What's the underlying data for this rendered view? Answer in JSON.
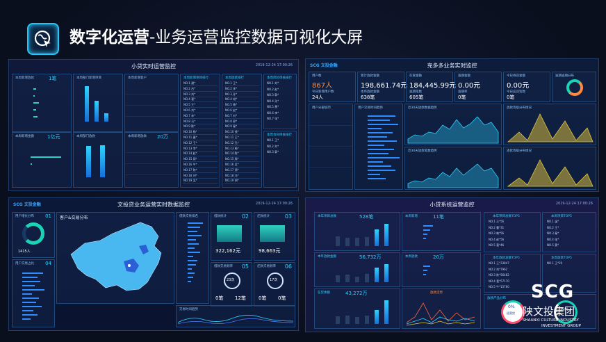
{
  "slide": {
    "title_bold": "数字化运营",
    "title_rest": "-业务运营监控数据可视化大屏",
    "logo_icon": "globe-cursor-icon",
    "accent": "#29c4f6"
  },
  "panel1": {
    "title": "小贷实时运营监控",
    "time": "2019-12-24 17:00:26",
    "card_loans_label": "本周新增放款",
    "card_loans_value": "1笔",
    "card_dept_label": "本周部门新增项目",
    "card_cust_label": "本周新增客户",
    "card_amt_label": "本周新增金额",
    "card_amt_value": "1亿元",
    "card_dept2_label": "本周部门放款",
    "card_cust2_label": "本周新增放款",
    "card_cust2_value": "20万",
    "rank1_title": "本周新增项目排行",
    "rank2_title": "本周放款排行",
    "rank3_title": "本周风险审核排行",
    "rank4_title": "本周合同审核排行",
    "rank1": [
      "NO.1  谢*",
      "NO.2  吕*",
      "NO.3  刘*",
      "NO.4  葛*",
      "NO.5  王*",
      "NO.6  刘*",
      "NO.7  李*",
      "NO.8  马*",
      "NO.9  陈*",
      "NO.10 杨*",
      "NO.11 唐*",
      "NO.12 王*",
      "NO.13 李*",
      "NO.14 赵*",
      "NO.15 邱*",
      "NO.16 牛*",
      "NO.17 陈*",
      "NO.18 刘*",
      "NO.19 吴*"
    ],
    "rank2": [
      "NO.1  王*",
      "NO.2  李*",
      "NO.3  孙*",
      "NO.4  胡*",
      "NO.5  杨*",
      "NO.6  赵*",
      "NO.7  刘*",
      "NO.8  郭*",
      "NO.9  秦*",
      "NO.10 钱*",
      "NO.11 王*",
      "NO.12 孔*",
      "NO.13 杨*",
      "NO.14 陈*",
      "NO.15 周*",
      "NO.16 吴*",
      "NO.17 郑*",
      "NO.18 冯*",
      "NO.19 胡*"
    ],
    "rank3": [
      "NO.1  刘*",
      "NO.2  赵*",
      "NO.3  郭*",
      "NO.4  孙*",
      "NO.5  黄*",
      "NO.6  李*",
      "NO.7  张*"
    ],
    "rank4": [
      "NO.1  王*",
      "NO.2  刘*",
      "NO.3  郭*"
    ]
  },
  "panel2": {
    "title": "充多多业务实时监控",
    "brand": "SCG 文投金融",
    "k1_label": "用户数",
    "k1_value": "867人",
    "k1_sub_label": "今日新增用户数",
    "k1_sub_value": "24人",
    "k2_label": "累计放款金额",
    "k2_value": "198,661.74元",
    "k2_sub_label": "本月放款金额",
    "k2_sub_value": "638笔",
    "k3_label": "在管金额",
    "k3_value": "184,445.99元",
    "k3_sub_label": "逾期笔数",
    "k3_sub_value": "605笔",
    "k4_label": "逾期金额",
    "k4_value": "0.00元",
    "k4_sub_label": "逾期率",
    "k4_sub_value": "0笔",
    "k5_label": "今日待还金额",
    "k5_value": "0.00元",
    "k5_sub_label": "今日应还笔数",
    "k5_sub_value": "0笔",
    "k6_label": "逾期逾期分布",
    "c1_title": "用户分部城市",
    "c2_title": "用户交易时间趋势",
    "c3_title": "近30天放款数据趋势",
    "c4_title": "放款等级分布情况",
    "c5_title": "近30天放款笔数趋势",
    "c6_title": "还款等级分布情况"
  },
  "panel3": {
    "title": "文投贷业务运营实时数据监控",
    "brand": "SCG 文投金融",
    "time": "2019-12-24 17:00:26",
    "left_title": "用户增长分布",
    "left_num": "01",
    "left_value": "1415人",
    "left2_title": "用户交易占比",
    "left2_num": "04",
    "map_title": "客户&交易分布",
    "list_title": "借款交易排名",
    "m1_label": "借款统计",
    "m1_num": "02",
    "m1_value": "322,162元",
    "m2_label": "还款统计",
    "m2_num": "03",
    "m2_value": "98,663元",
    "m3_label": "借款交易频率",
    "m3_num": "05",
    "m3_ring": "23次",
    "m3_a": "0笔",
    "m3_b": "12笔",
    "m4_label": "还款交易频率",
    "m4_num": "06",
    "m4_ring": "17次",
    "m4_a": "0笔",
    "m4_b": "0笔",
    "bottom_title": "交易时间趋势"
  },
  "panel4": {
    "title": "小贷系统运营监控",
    "time": "2019-12-24 17:00:26",
    "s1_label": "本年项目总数",
    "s1_value": "528笔",
    "s2_label": "本周新增",
    "s2_value": "11笔",
    "s3_label": "本年放款金额",
    "s3_value": "56,732万",
    "s4_label": "本周放款",
    "s4_value": "20万",
    "s5_label": "在贷余额",
    "s5_value": "43,272万",
    "s6_label": "放款走势",
    "top1_title": "本年项目总数TOP5",
    "top2_title": "本周项目TOP5",
    "top3_title": "本年放款总额TOP5",
    "top4_title": "本周放款TOP5",
    "top5_title": "放款产品分布",
    "top1": [
      "NO.1 王*56",
      "NO.2 曹*31",
      "NO.3 韩*56",
      "NO.4 赵*56",
      "NO.5 葛*46"
    ],
    "top2": [
      "NO.1 温*",
      "NO.2 王*",
      "NO.3 秦*",
      "NO.4 张*",
      "NO.5 黄*"
    ],
    "top3": [
      "NO.1 王*33847",
      "NO.2 刘*7962",
      "NO.3 陈*56482",
      "NO.4 葛*57170",
      "NO.5 牛*15760"
    ],
    "top4": [
      "NO.1 王*20"
    ],
    "ring1": "0%",
    "ring1_label": "经营贷",
    "ring2": "39%"
  },
  "brand_logo": {
    "scg": "SCG",
    "cn": "陕文投集团",
    "en1": "SHAANXI CULTURE INDUSTRY",
    "en2": "INVESTMENT GROUP"
  }
}
